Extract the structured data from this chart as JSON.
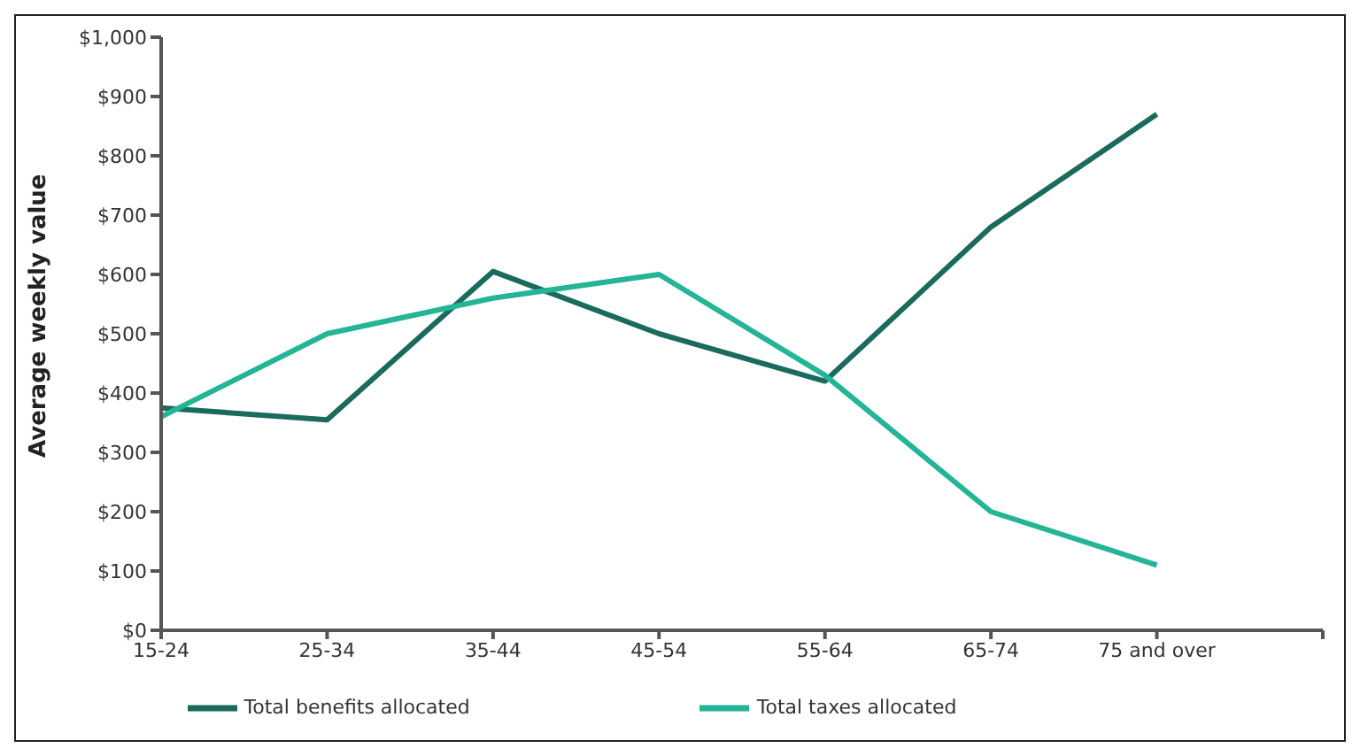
{
  "chart_data": {
    "type": "line",
    "ylabel": "Average weekly value",
    "categories": [
      "15-24",
      "25-34",
      "35-44",
      "45-54",
      "55-64",
      "65-74",
      "75 and over",
      null
    ],
    "series": [
      {
        "name": "Total benefits allocated",
        "color": "#1a6b5d",
        "values": [
          375,
          355,
          605,
          500,
          420,
          680,
          870,
          null
        ]
      },
      {
        "name": "Total taxes allocated",
        "color": "#23b596",
        "values": [
          360,
          500,
          560,
          600,
          430,
          200,
          110,
          null
        ]
      }
    ],
    "ylim": [
      0,
      1000
    ],
    "yticks": [
      {
        "value": 0,
        "label": "$0"
      },
      {
        "value": 100,
        "label": "$100"
      },
      {
        "value": 200,
        "label": "$200"
      },
      {
        "value": 300,
        "label": "$300"
      },
      {
        "value": 400,
        "label": "$400"
      },
      {
        "value": 500,
        "label": "$500"
      },
      {
        "value": 600,
        "label": "$600"
      },
      {
        "value": 700,
        "label": "$700"
      },
      {
        "value": 800,
        "label": "$800"
      },
      {
        "value": 900,
        "label": "$900"
      },
      {
        "value": 1000,
        "label": "$1,000"
      }
    ],
    "grid": false,
    "legend": "bottom",
    "marker": "none",
    "line_style": "solid"
  }
}
